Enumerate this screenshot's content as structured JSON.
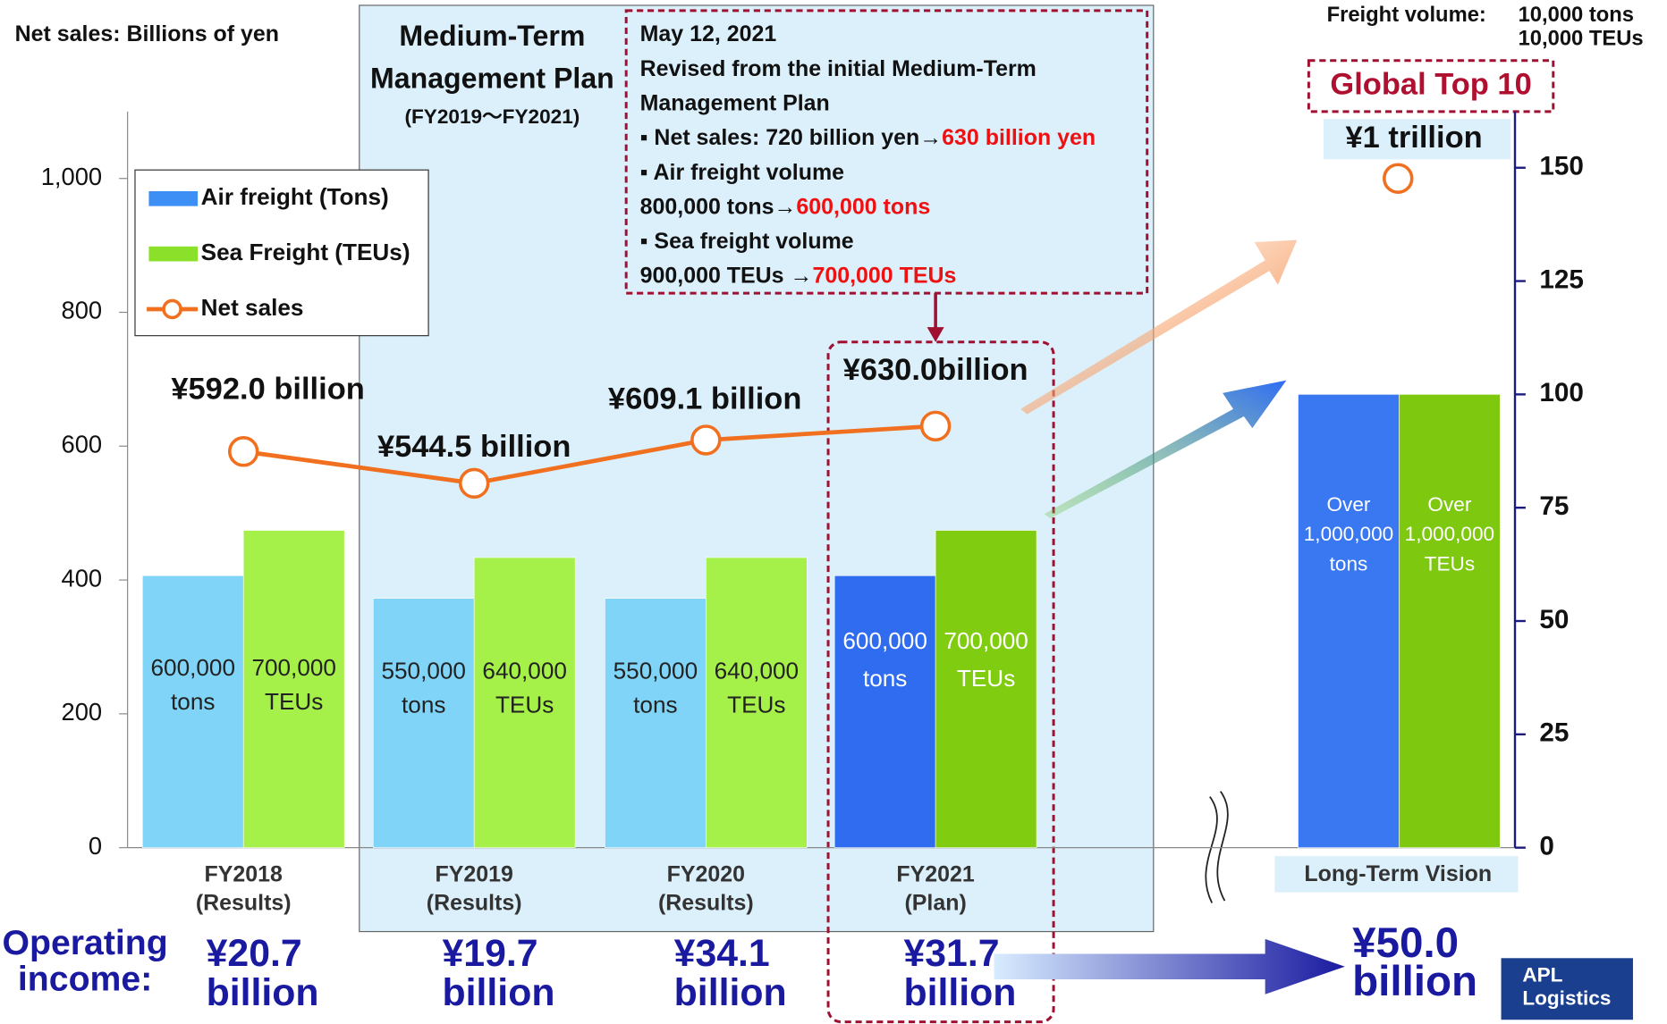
{
  "chart_data": {
    "type": "bar",
    "y_label": "Net sales: Billions of yen",
    "y2_label": "Freight volume:",
    "y2_units": [
      "10,000 tons",
      "10,000 TEUs"
    ],
    "plan_title": "Medium-Term\nManagement Plan",
    "plan_period": "(FY2019〜FY2021)",
    "note_lines": [
      [
        "May 12, 2021"
      ],
      [
        "Revised from the initial Medium-Term"
      ],
      [
        "Management Plan"
      ],
      [
        "▪ Net sales: 720 billion yen→",
        "630 billion yen"
      ],
      [
        "▪ Air freight volume"
      ],
      [
        " 800,000 tons→",
        "600,000 tons"
      ],
      [
        "▪ Sea freight volume"
      ],
      [
        "  900,000 TEUs →",
        "700,000 TEUs"
      ]
    ],
    "highlight_color": "#ee1111",
    "badge": "Global Top 10",
    "categories": [
      "FY2018\n(Results)",
      "FY2019\n(Results)",
      "FY2020\n(Results)",
      "FY2021\n(Plan)",
      "Long-Term Vision"
    ],
    "series": [
      {
        "name": "Air freight (Tons)",
        "axis": "y2",
        "color": "#3d8ef5",
        "colors": [
          "#80d4f8",
          "#80d4f8",
          "#80d4f8",
          "#2f6cf0",
          "#3a78f2"
        ],
        "values": [
          60,
          55,
          55,
          60,
          100
        ],
        "value_labels": [
          "600,000\ntons",
          "550,000\ntons",
          "550,000\ntons",
          "600,000\ntons",
          "Over\n1,000,000\ntons"
        ]
      },
      {
        "name": "Sea Freight (TEUs)",
        "axis": "y2",
        "color": "#8be02a",
        "colors": [
          "#a6f04a",
          "#a6f04a",
          "#a6f04a",
          "#7fcc10",
          "#7fc810"
        ],
        "values": [
          70,
          64,
          64,
          70,
          100
        ],
        "value_labels": [
          "700,000\nTEUs",
          "640,000\nTEUs",
          "640,000\nTEUs",
          "700,000\nTEUs",
          "Over\n1,000,000\nTEUs"
        ]
      },
      {
        "name": "Net sales",
        "type": "line",
        "color": "#f07020",
        "values": [
          592.0,
          544.5,
          609.1,
          630.0,
          1000
        ],
        "value_labels": [
          "¥592.0 billion",
          "¥544.5 billion",
          "¥609.1 billion",
          "¥630.0billion",
          "¥1 trillion"
        ]
      }
    ],
    "ylim": [
      0,
      1100
    ],
    "yticks": [
      0,
      200,
      400,
      600,
      800,
      {
        "value": 1000,
        "label": "1,000"
      }
    ],
    "y2lim": [
      0,
      162.4
    ],
    "y2ticks": [
      0,
      25,
      50,
      75,
      100,
      125,
      150
    ],
    "operating_income": {
      "label": "Operating\nincome:",
      "labels": [
        "¥20.7\nbillion",
        "¥19.7\nbillion",
        "¥34.1\nbillion",
        "¥31.7\nbillion",
        "¥50.0\nbillion"
      ]
    },
    "logo": "APL\nLogistics"
  }
}
